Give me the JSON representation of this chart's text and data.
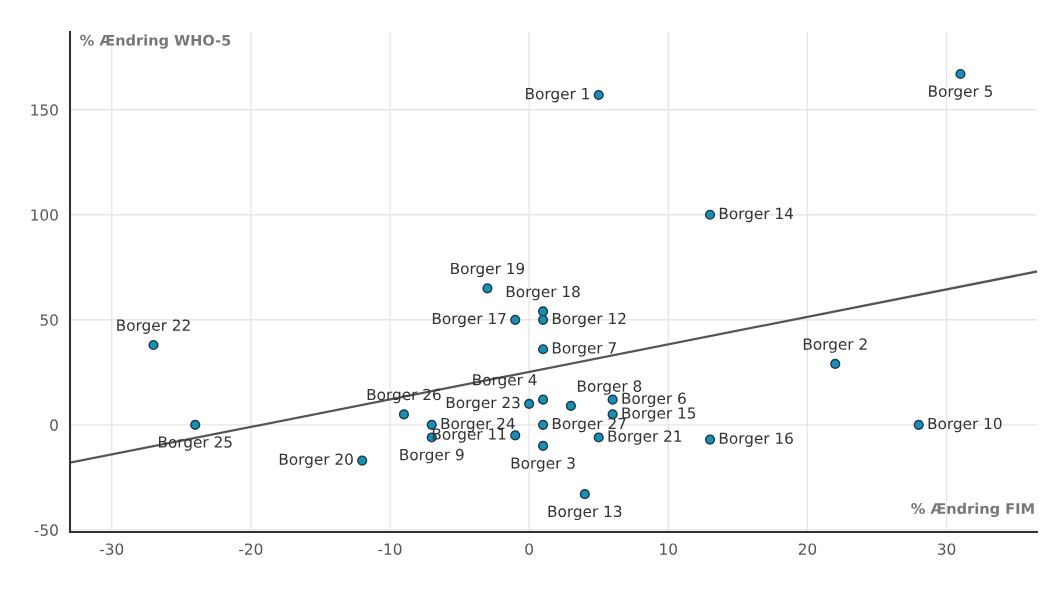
{
  "chart_data": {
    "type": "scatter",
    "xlabel": "% Ændring FIM",
    "ylabel": "% Ændring WHO-5",
    "xlim": [
      -33,
      36.5
    ],
    "ylim": [
      -51,
      187
    ],
    "xticks": [
      -30,
      -20,
      -10,
      0,
      10,
      20,
      30
    ],
    "yticks": [
      -50,
      0,
      50,
      100,
      150
    ],
    "grid": true,
    "series": [
      {
        "color": "#1a8fb5",
        "marker": "circle",
        "x": [
          5,
          22,
          1,
          1,
          31,
          6,
          1,
          3,
          -7,
          28,
          -1,
          1,
          4,
          13,
          6,
          13,
          -1,
          1,
          -3,
          -12,
          5,
          -27,
          0,
          -7,
          -24,
          -9,
          1
        ],
        "values": [
          157,
          29,
          -10,
          12,
          167,
          12,
          36,
          9,
          -6,
          0,
          -5,
          50,
          -33,
          100,
          5,
          -7,
          50,
          54,
          65,
          -17,
          -6,
          38,
          10,
          0,
          0,
          5,
          0
        ]
      },
      {
        "type": "line",
        "color": "#555555",
        "x": [
          -33,
          36.5
        ],
        "values": [
          -18,
          73
        ]
      }
    ],
    "annotations": [
      {
        "text": "Borger 1",
        "x": 5,
        "y": 157
      },
      {
        "text": "Borger 2",
        "x": 22,
        "y": 29
      },
      {
        "text": "Borger 3",
        "x": 1,
        "y": -10
      },
      {
        "text": "Borger 4",
        "x": 1,
        "y": 12
      },
      {
        "text": "Borger 5",
        "x": 31,
        "y": 167
      },
      {
        "text": "Borger 6",
        "x": 6,
        "y": 12
      },
      {
        "text": "Borger 7",
        "x": 1,
        "y": 36
      },
      {
        "text": "Borger 8",
        "x": 3,
        "y": 9
      },
      {
        "text": "Borger 9",
        "x": -7,
        "y": -6
      },
      {
        "text": "Borger 10",
        "x": 28,
        "y": 0
      },
      {
        "text": "Borger 11",
        "x": -1,
        "y": -5
      },
      {
        "text": "Borger 12",
        "x": 1,
        "y": 50
      },
      {
        "text": "Borger 13",
        "x": 4,
        "y": -33
      },
      {
        "text": "Borger 14",
        "x": 13,
        "y": 100
      },
      {
        "text": "Borger 15",
        "x": 6,
        "y": 5
      },
      {
        "text": "Borger 16",
        "x": 13,
        "y": -7
      },
      {
        "text": "Borger 17",
        "x": -1,
        "y": 50
      },
      {
        "text": "Borger 18",
        "x": 1,
        "y": 54
      },
      {
        "text": "Borger 19",
        "x": -3,
        "y": 65
      },
      {
        "text": "Borger 20",
        "x": -12,
        "y": -17
      },
      {
        "text": "Borger 21",
        "x": 5,
        "y": -6
      },
      {
        "text": "Borger 22",
        "x": -27,
        "y": 38
      },
      {
        "text": "Borger 23",
        "x": 0,
        "y": 10
      },
      {
        "text": "Borger 24",
        "x": -7,
        "y": 0
      },
      {
        "text": "Borger 25",
        "x": -24,
        "y": 0
      },
      {
        "text": "Borger 26",
        "x": -9,
        "y": 5
      },
      {
        "text": "Borger 27",
        "x": 1,
        "y": 0
      }
    ]
  }
}
